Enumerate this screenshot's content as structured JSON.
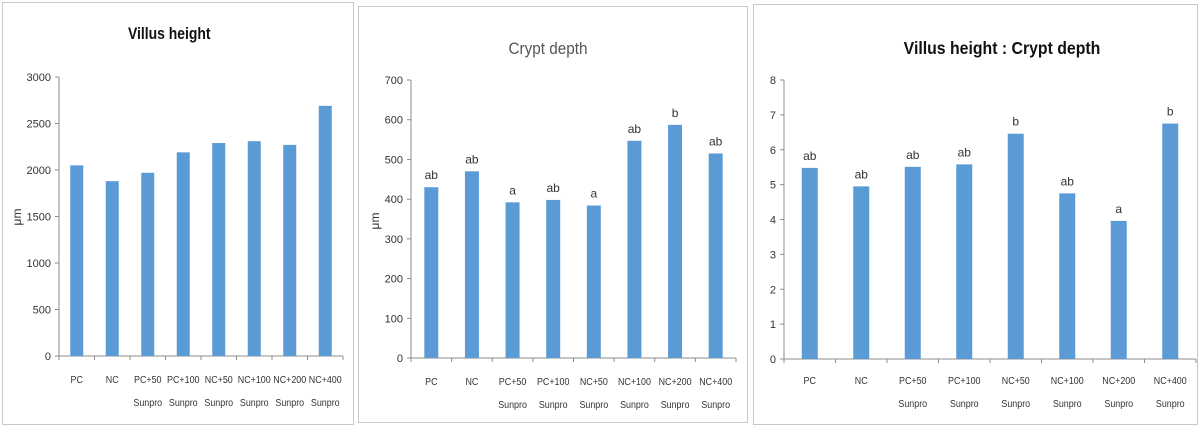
{
  "bar_color": "#5b9bd5",
  "axis_color": "#8c8c8c",
  "text_color": "#333333",
  "chart_data": [
    {
      "type": "bar",
      "title": "Villus height",
      "ylabel": "μm",
      "ylim": [
        0,
        3000
      ],
      "yticks": [
        "0",
        "500",
        "1000",
        "1500",
        "2000",
        "2500",
        "3000"
      ],
      "categories": [
        [
          "PC"
        ],
        [
          "NC"
        ],
        [
          "PC+50",
          "Sunpro"
        ],
        [
          "PC+100",
          "Sunpro"
        ],
        [
          "NC+50",
          "Sunpro"
        ],
        [
          "NC+100",
          "Sunpro"
        ],
        [
          "NC+200",
          "Sunpro"
        ],
        [
          "NC+400",
          "Sunpro"
        ]
      ],
      "values": [
        2050,
        1880,
        1970,
        2190,
        2290,
        2310,
        2270,
        2690
      ],
      "labels": []
    },
    {
      "type": "bar",
      "title": "Crypt depth",
      "ylabel": "μm",
      "ylim": [
        0,
        700
      ],
      "yticks": [
        "0",
        "100",
        "200",
        "300",
        "400",
        "500",
        "600",
        "700"
      ],
      "categories": [
        [
          "PC"
        ],
        [
          "NC"
        ],
        [
          "PC+50",
          "Sunpro"
        ],
        [
          "PC+100",
          "Sunpro"
        ],
        [
          "NC+50",
          "Sunpro"
        ],
        [
          "NC+100",
          "Sunpro"
        ],
        [
          "NC+200",
          "Sunpro"
        ],
        [
          "NC+400",
          "Sunpro"
        ]
      ],
      "values": [
        430,
        470,
        392,
        398,
        384,
        547,
        587,
        515
      ],
      "labels": [
        "ab",
        "ab",
        "a",
        "ab",
        "a",
        "ab",
        "b",
        "ab"
      ]
    },
    {
      "type": "bar",
      "title": "Villus height : Crypt depth",
      "ylabel": "",
      "ylim": [
        0,
        8
      ],
      "yticks": [
        "0",
        "1",
        "2",
        "3",
        "4",
        "5",
        "6",
        "7",
        "8"
      ],
      "categories": [
        [
          "PC"
        ],
        [
          "NC"
        ],
        [
          "PC+50",
          "Sunpro"
        ],
        [
          "PC+100",
          "Sunpro"
        ],
        [
          "NC+50",
          "Sunpro"
        ],
        [
          "NC+100",
          "Sunpro"
        ],
        [
          "NC+200",
          "Sunpro"
        ],
        [
          "NC+400",
          "Sunpro"
        ]
      ],
      "values": [
        5.48,
        4.95,
        5.51,
        5.58,
        6.46,
        4.75,
        3.96,
        6.75
      ],
      "labels": [
        "ab",
        "ab",
        "ab",
        "ab",
        "b",
        "ab",
        "a",
        "b"
      ]
    }
  ]
}
